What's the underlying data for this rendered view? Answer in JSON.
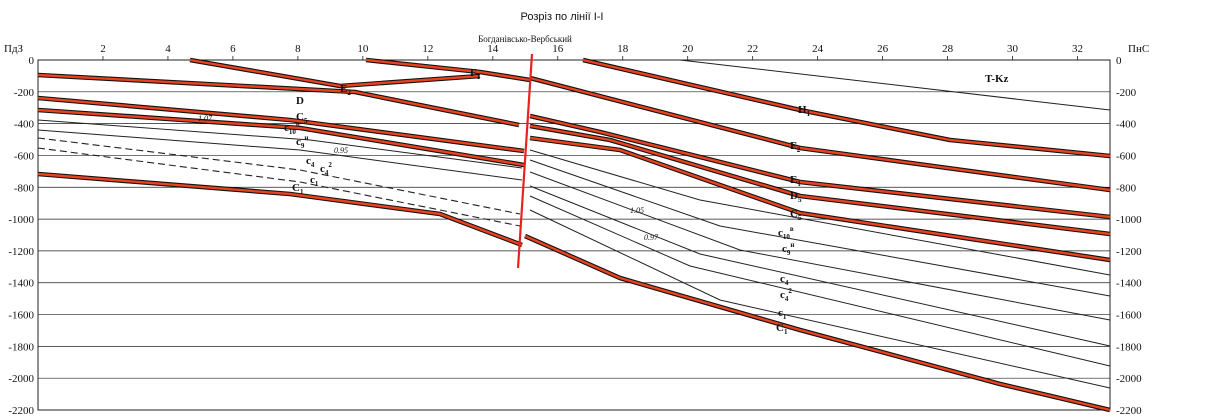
{
  "title": "Розріз по лінії І-І",
  "left_end_label": "ПдЗ",
  "right_end_label": "ПнС",
  "fault_name": "Богданівсько-Вербський",
  "x_ticks": [
    "2",
    "4",
    "6",
    "8",
    "10",
    "12",
    "14",
    "16",
    "18",
    "20",
    "22",
    "24",
    "26",
    "28",
    "30",
    "32"
  ],
  "depth_ticks": [
    "0",
    "-200",
    "-400",
    "-600",
    "-800",
    "-1000",
    "-1200",
    "-1400",
    "-1600",
    "-1800",
    "-2000",
    "-2200"
  ],
  "stratigraphy_labels": {
    "e2": {
      "main": "E",
      "sub": "2"
    },
    "f1": {
      "main": "F",
      "sub": "1"
    },
    "h1": {
      "main": "H",
      "sub": "1"
    },
    "tkz": {
      "main": "T-Kz",
      "sub": ""
    },
    "d_left": {
      "main": "D",
      "sub": "5"
    },
    "c5_left": {
      "main": "C",
      "sub": "5"
    },
    "c10b_left": {
      "main": "c",
      "sub": "10",
      "sup": "в"
    },
    "c9n_left": {
      "main": "c",
      "sub": "9",
      "sup": "н"
    },
    "c4_left": {
      "main": "c",
      "sub": "4"
    },
    "c4_2_left": {
      "main": "c",
      "sub": "4",
      "sup": "2"
    },
    "c1_left": {
      "main": "c",
      "sub": "1"
    },
    "c1_thick_left": {
      "main": "C",
      "sub": "1"
    },
    "f2": {
      "main": "F",
      "sub": "2"
    },
    "e1": {
      "main": "E",
      "sub": "1"
    },
    "d5": {
      "main": "D",
      "sub": "5"
    },
    "c5": {
      "main": "C",
      "sub": "5"
    },
    "c10b": {
      "main": "c",
      "sub": "10",
      "sup": "в"
    },
    "c9n": {
      "main": "c",
      "sub": "9",
      "sup": "н"
    },
    "c4": {
      "main": "c",
      "sub": "4"
    },
    "c4_2": {
      "main": "c",
      "sub": "4",
      "sup": "2"
    },
    "c1": {
      "main": "c",
      "sub": "1"
    },
    "c1_thick": {
      "main": "C",
      "sub": "1"
    }
  },
  "coefficients": {
    "k107": "1.07",
    "k095": "0.95",
    "k105": "1.05",
    "k097": "0.97"
  },
  "colors": {
    "marker_fill": "#e8421e",
    "marker_edge": "#111111",
    "fault": "#e8221e",
    "line": "#222222"
  }
}
